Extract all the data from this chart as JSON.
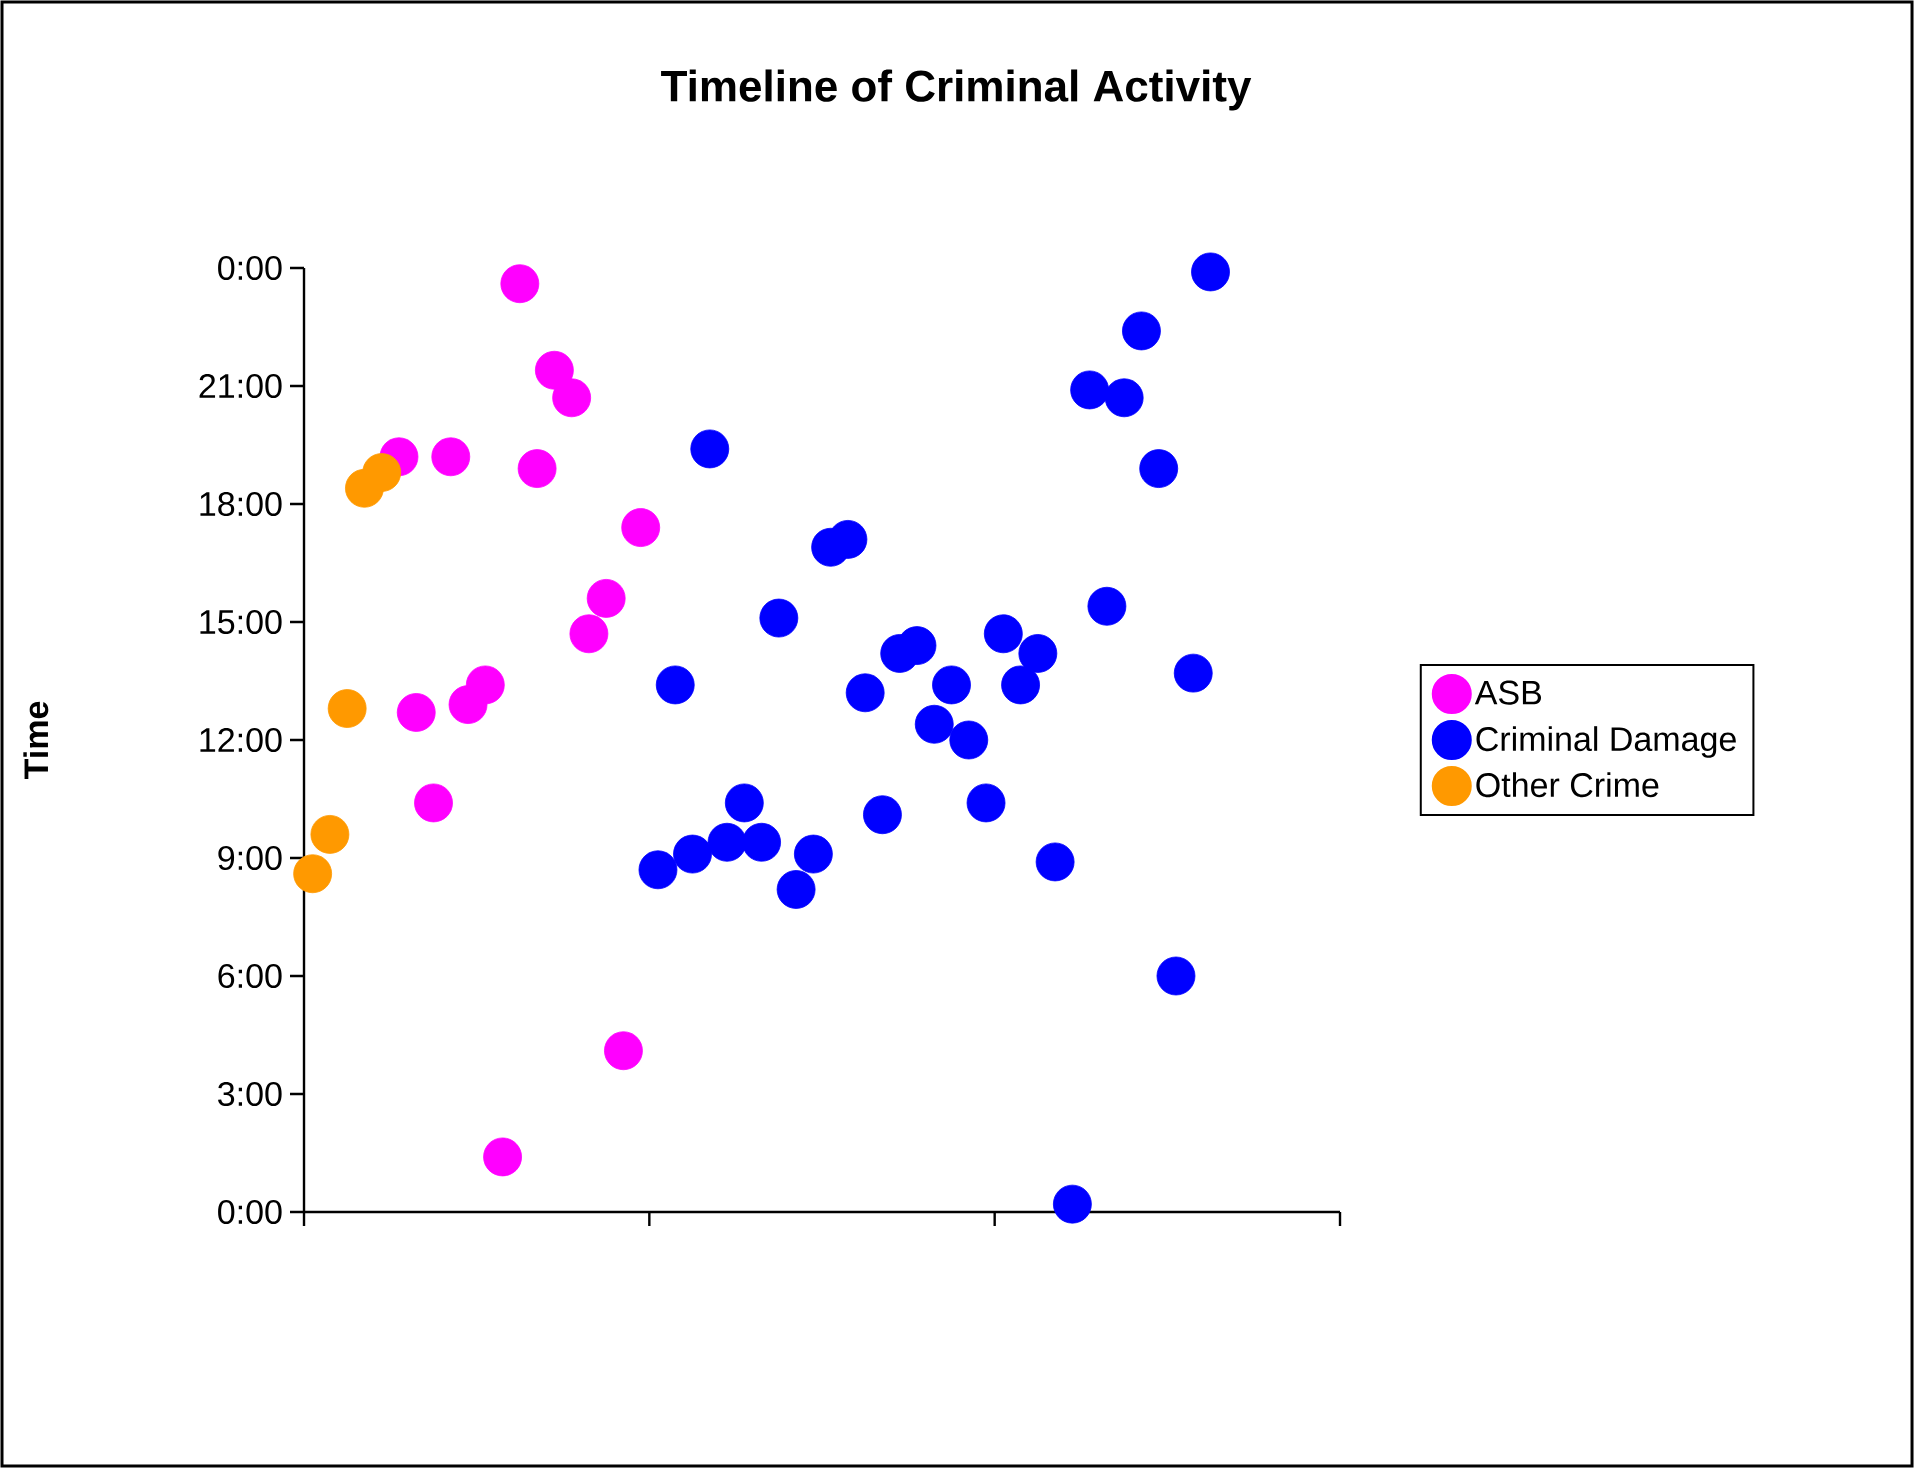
{
  "chart_data": {
    "type": "scatter",
    "title": "Timeline of Criminal Activity",
    "ylabel": "Time",
    "categories": [
      null,
      null,
      null,
      null,
      null,
      null,
      null,
      null,
      null,
      null,
      null,
      null,
      null,
      null,
      null,
      null,
      null,
      null,
      null,
      null,
      null,
      null,
      null,
      null,
      null,
      null,
      null,
      null,
      null,
      null,
      null,
      null,
      null,
      null,
      null,
      null,
      null,
      null,
      null,
      null,
      null,
      null,
      null,
      null,
      null,
      null,
      null,
      null,
      null,
      null,
      null,
      null,
      null,
      null,
      null,
      null,
      null,
      null,
      null,
      null
    ],
    "series": [
      {
        "name": "ASB",
        "color": "#ff00ff",
        "values": [
          null,
          null,
          null,
          null,
          null,
          19.2,
          12.7,
          10.4,
          19.2,
          12.9,
          13.4,
          1.4,
          23.6,
          18.9,
          21.4,
          20.7,
          14.7,
          15.6,
          4.1,
          17.4,
          null,
          null,
          null,
          null,
          null,
          null,
          null,
          null,
          null,
          null,
          null,
          null,
          null,
          null,
          null,
          null,
          null,
          null,
          null,
          null,
          null,
          null,
          null,
          null,
          null,
          null,
          null,
          null,
          null,
          null,
          null,
          null,
          null,
          null,
          null,
          null,
          null,
          null,
          null,
          null
        ]
      },
      {
        "name": "Criminal Damage",
        "color": "#0000ff",
        "values": [
          null,
          null,
          null,
          null,
          null,
          null,
          null,
          null,
          null,
          null,
          null,
          null,
          null,
          null,
          null,
          null,
          null,
          null,
          null,
          null,
          8.7,
          13.4,
          9.1,
          19.4,
          9.4,
          10.4,
          9.4,
          15.1,
          8.2,
          9.1,
          16.9,
          17.1,
          13.2,
          10.1,
          14.2,
          14.4,
          12.4,
          13.4,
          12.0,
          10.4,
          14.7,
          13.4,
          14.2,
          8.9,
          0.2,
          20.9,
          15.4,
          20.7,
          22.4,
          18.9,
          6.0,
          13.7,
          23.9,
          null,
          null,
          null,
          null,
          null,
          null,
          null
        ]
      },
      {
        "name": "Other Crime",
        "color": "#ff9900",
        "values": [
          8.6,
          9.6,
          12.8,
          18.4,
          18.8,
          null,
          null,
          null,
          null,
          null,
          null,
          null,
          null,
          null,
          null,
          null,
          null,
          null,
          null,
          null,
          null,
          null,
          null,
          null,
          null,
          null,
          null,
          null,
          null,
          null,
          null,
          null,
          null,
          null,
          null,
          null,
          null,
          null,
          null,
          null,
          null,
          null,
          null,
          null,
          null,
          null,
          null,
          null,
          null,
          null,
          null,
          null,
          null,
          null,
          null,
          null,
          null,
          null,
          null,
          null
        ]
      }
    ],
    "ylim": [
      0,
      24
    ],
    "yticks": [
      {
        "value": 0,
        "label": "0:00"
      },
      {
        "value": 3,
        "label": "3:00"
      },
      {
        "value": 6,
        "label": "6:00"
      },
      {
        "value": 9,
        "label": "9:00"
      },
      {
        "value": 12,
        "label": "12:00"
      },
      {
        "value": 15,
        "label": "15:00"
      },
      {
        "value": 18,
        "label": "18:00"
      },
      {
        "value": 21,
        "label": "21:00"
      },
      {
        "value": 24,
        "label": "0:00"
      }
    ],
    "marker": "circle",
    "legend": "right",
    "grid": false
  }
}
